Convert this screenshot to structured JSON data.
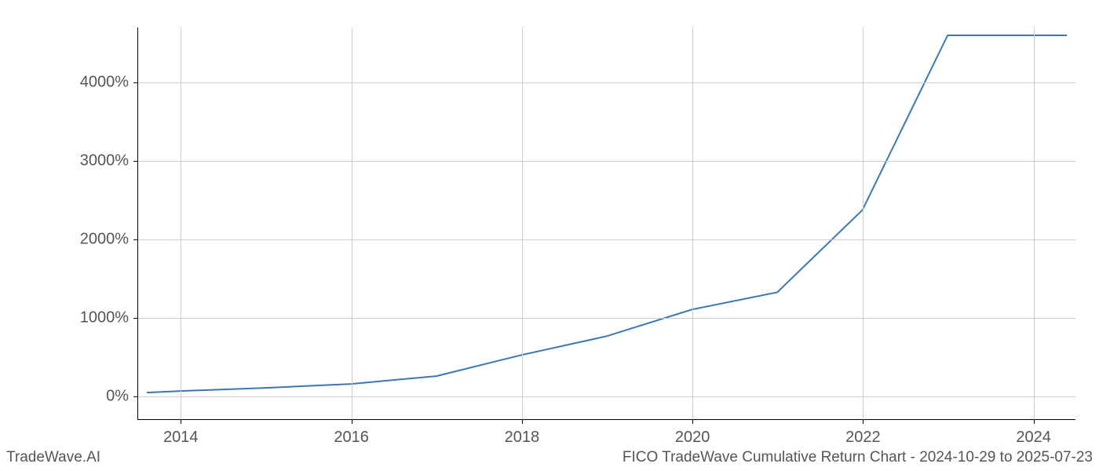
{
  "chart": {
    "type": "line",
    "background_color": "#ffffff",
    "grid_color": "#cccccc",
    "axis_color": "#000000",
    "tick_label_color": "#555555",
    "tick_label_fontsize": 20,
    "footer_fontsize": 19,
    "footer_color": "#555555",
    "line_color": "#3a78b5",
    "line_width": 2,
    "xlim": [
      2013.5,
      2024.5
    ],
    "ylim": [
      -300,
      4700
    ],
    "x_ticks": [
      2014,
      2016,
      2018,
      2020,
      2022,
      2024
    ],
    "x_tick_labels": [
      "2014",
      "2016",
      "2018",
      "2020",
      "2022",
      "2024"
    ],
    "y_ticks": [
      0,
      1000,
      2000,
      3000,
      4000
    ],
    "y_tick_labels": [
      "0%",
      "1000%",
      "2000%",
      "3000%",
      "4000%"
    ],
    "data": {
      "x": [
        2013.6,
        2014,
        2015,
        2016,
        2017,
        2018,
        2019,
        2020,
        2021,
        2022,
        2023,
        2024,
        2024.4
      ],
      "y": [
        40,
        60,
        100,
        150,
        250,
        520,
        760,
        1100,
        1320,
        2370,
        4600,
        4600,
        4600
      ]
    }
  },
  "footer": {
    "left": "TradeWave.AI",
    "right": "FICO TradeWave Cumulative Return Chart - 2024-10-29 to 2025-07-23"
  }
}
